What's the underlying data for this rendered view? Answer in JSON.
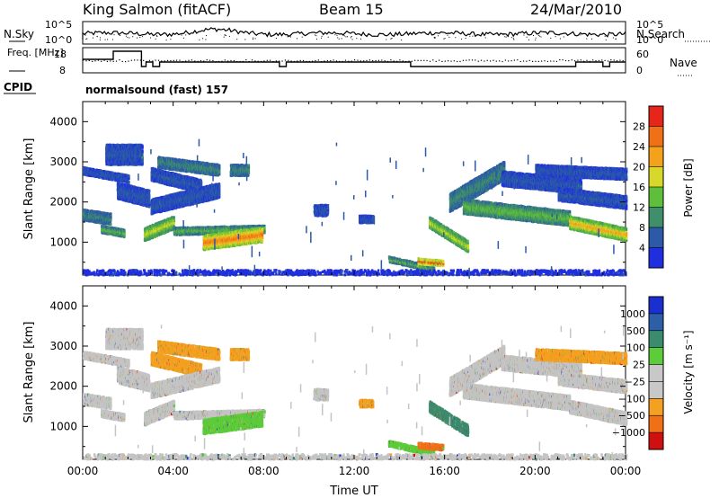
{
  "header": {
    "station": "King Salmon (fitACF)",
    "beam": "Beam 15",
    "date": "24/Mar/2010"
  },
  "colors": {
    "cbar_power": [
      "#1f2fe0",
      "#2c5aa8",
      "#3f8f6a",
      "#5fbf3a",
      "#d8d82a",
      "#f2a21b",
      "#f07018",
      "#e6261a"
    ],
    "cbar_velocity": [
      "#d01010",
      "#f07018",
      "#f4a020",
      "#c8c8c8",
      "#c8c8c8",
      "#5ccc3a",
      "#3d8b6e",
      "#2d5fa8",
      "#1a2fd0"
    ],
    "vel_ground": "#c4c4c4"
  },
  "chart_data": [
    {
      "type": "line",
      "panel": "noise",
      "left_labels": [
        "N.Sky"
      ],
      "right_labels": [
        "N.Search"
      ],
      "y_ticks_left": [
        "10^5",
        "10^0"
      ],
      "y_ticks_right": [
        "10^5",
        "10^0"
      ]
    },
    {
      "type": "line",
      "panel": "frequency-nave",
      "left_label": "Freq. [MHz]",
      "right_label": "Nave",
      "y_ticks_left": [
        "18",
        "8"
      ],
      "y_ticks_right": [
        "60",
        "0"
      ],
      "cpid_label": "CPID",
      "cpid_text": "normalsound (fast) 157"
    },
    {
      "type": "heatmap",
      "panel": "power",
      "ylabel": "Slant Range [km]",
      "xlim": [
        0,
        24
      ],
      "ylim": [
        180,
        4500
      ],
      "y_ticks": [
        "1000",
        "2000",
        "3000",
        "4000"
      ],
      "colorbar": {
        "label": "Power [dB]",
        "ticks": [
          "4",
          "8",
          "12",
          "16",
          "20",
          "24",
          "28"
        ],
        "range": [
          0,
          32
        ]
      }
    },
    {
      "type": "heatmap",
      "panel": "velocity",
      "ylabel": "Slant Range [km]",
      "xlabel": "Time UT",
      "x_ticks": [
        "00:00",
        "04:00",
        "08:00",
        "12:00",
        "16:00",
        "20:00",
        "00:00"
      ],
      "xlim": [
        0,
        24
      ],
      "ylim": [
        180,
        4500
      ],
      "y_ticks": [
        "1000",
        "2000",
        "3000",
        "4000"
      ],
      "colorbar": {
        "label": "Velocity [m s⁻¹]",
        "ticks": [
          "1000",
          "500",
          "100",
          "25",
          "−25",
          "−100",
          "−500",
          "−1000"
        ]
      }
    }
  ]
}
